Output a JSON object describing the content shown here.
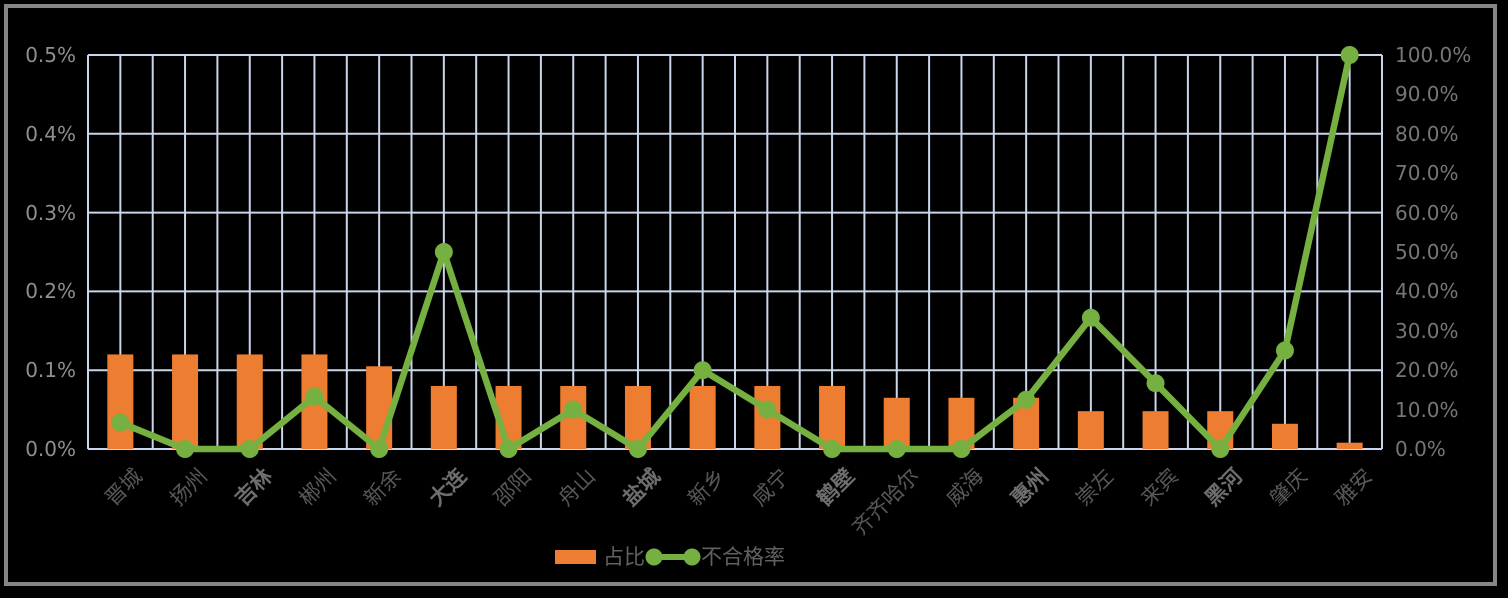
{
  "chart_data": {
    "type": "bar+line combo",
    "title": "",
    "categories": [
      "晋城",
      "扬州",
      "吉林",
      "郴州",
      "新余",
      "大连",
      "邵阳",
      "舟山",
      "盐城",
      "新乡",
      "咸宁",
      "鹤壁",
      "齐齐哈尔",
      "威海",
      "惠州",
      "崇左",
      "来宾",
      "黑河",
      "肇庆",
      "雅安"
    ],
    "bold_category_indices": [
      2,
      5,
      8,
      11,
      14,
      17
    ],
    "series": [
      {
        "name": "占比",
        "type": "bar",
        "axis": "left",
        "color": "#ED7D31",
        "values": [
          0.12,
          0.12,
          0.12,
          0.12,
          0.105,
          0.08,
          0.08,
          0.08,
          0.08,
          0.08,
          0.08,
          0.08,
          0.065,
          0.065,
          0.065,
          0.048,
          0.048,
          0.048,
          0.032,
          0.008
        ]
      },
      {
        "name": "不合格率",
        "type": "line",
        "axis": "right",
        "color": "#76B041",
        "values": [
          6.7,
          0,
          0,
          13.3,
          0,
          50,
          0,
          10,
          0,
          20,
          10,
          0,
          0,
          0,
          12.5,
          33.3,
          16.7,
          0,
          25,
          100
        ]
      }
    ],
    "left_axis": {
      "min": 0,
      "max": 0.5,
      "step": 0.1,
      "tick_labels": [
        "0.0%",
        "0.1%",
        "0.2%",
        "0.3%",
        "0.4%",
        "0.5%"
      ]
    },
    "right_axis": {
      "min": 0,
      "max": 100,
      "step": 10,
      "tick_labels": [
        "0.0%",
        "10.0%",
        "20.0%",
        "30.0%",
        "40.0%",
        "50.0%",
        "60.0%",
        "70.0%",
        "80.0%",
        "90.0%",
        "100.0%"
      ]
    },
    "grid": {
      "horizontal_lines": 6,
      "vertical_lines": 41,
      "color": "#C9D5EA"
    },
    "legend": {
      "position": "bottom",
      "items": [
        "占比",
        "不合格率"
      ]
    }
  },
  "colors": {
    "background": "#000000",
    "frame_border": "#868686",
    "bar": "#ED7D31",
    "line": "#76B041",
    "gridline": "#C9D5EA",
    "y_left_label": "#8F8F8F",
    "y_right_label": "#767676",
    "x_label": "#585858",
    "x_label_bold": "#6E6E6E",
    "legend_text": "#616161"
  }
}
